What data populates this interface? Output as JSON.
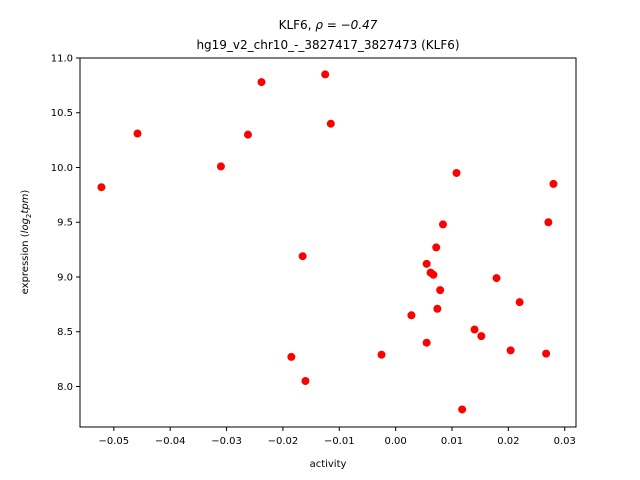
{
  "chart_data": {
    "type": "scatter",
    "title_gene": "KLF6",
    "title_rho": "ρ = −0.47",
    "subtitle": "hg19_v2_chr10_-_3827417_3827473 (KLF6)",
    "xlabel": "activity",
    "ylabel_prefix": "expression (",
    "ylabel_math": "log",
    "ylabel_sub": "2",
    "ylabel_math2": "tpm",
    "ylabel_suffix": ")",
    "xlim": [
      -0.056,
      0.032
    ],
    "ylim": [
      7.63,
      11.0
    ],
    "x_ticks": [
      -0.05,
      -0.04,
      -0.03,
      -0.02,
      -0.01,
      0.0,
      0.01,
      0.02,
      0.03
    ],
    "x_tick_labels": [
      "−0.05",
      "−0.04",
      "−0.03",
      "−0.02",
      "−0.01",
      "0.00",
      "0.01",
      "0.02",
      "0.03"
    ],
    "y_ticks": [
      8.0,
      8.5,
      9.0,
      9.5,
      10.0,
      10.5,
      11.0
    ],
    "y_tick_labels": [
      "8.0",
      "8.5",
      "9.0",
      "9.5",
      "10.0",
      "10.5",
      "11.0"
    ],
    "marker_color": "#ff0000",
    "grid": false,
    "points": [
      {
        "x": -0.0522,
        "y": 9.82
      },
      {
        "x": -0.0458,
        "y": 10.31
      },
      {
        "x": -0.031,
        "y": 10.01
      },
      {
        "x": -0.0262,
        "y": 10.3
      },
      {
        "x": -0.0238,
        "y": 10.78
      },
      {
        "x": -0.0185,
        "y": 8.27
      },
      {
        "x": -0.0165,
        "y": 9.19
      },
      {
        "x": -0.016,
        "y": 8.05
      },
      {
        "x": -0.0125,
        "y": 10.85
      },
      {
        "x": -0.0115,
        "y": 10.4
      },
      {
        "x": -0.0025,
        "y": 8.29
      },
      {
        "x": 0.0028,
        "y": 8.65
      },
      {
        "x": 0.0055,
        "y": 9.12
      },
      {
        "x": 0.0055,
        "y": 8.4
      },
      {
        "x": 0.0062,
        "y": 9.04
      },
      {
        "x": 0.0067,
        "y": 9.02
      },
      {
        "x": 0.0072,
        "y": 9.27
      },
      {
        "x": 0.0074,
        "y": 8.71
      },
      {
        "x": 0.0079,
        "y": 8.88
      },
      {
        "x": 0.0084,
        "y": 9.48
      },
      {
        "x": 0.0108,
        "y": 9.95
      },
      {
        "x": 0.0118,
        "y": 7.79
      },
      {
        "x": 0.014,
        "y": 8.52
      },
      {
        "x": 0.0152,
        "y": 8.46
      },
      {
        "x": 0.0179,
        "y": 8.99
      },
      {
        "x": 0.0204,
        "y": 8.33
      },
      {
        "x": 0.022,
        "y": 8.77
      },
      {
        "x": 0.0267,
        "y": 8.3
      },
      {
        "x": 0.0271,
        "y": 9.5
      },
      {
        "x": 0.028,
        "y": 9.85
      }
    ]
  }
}
